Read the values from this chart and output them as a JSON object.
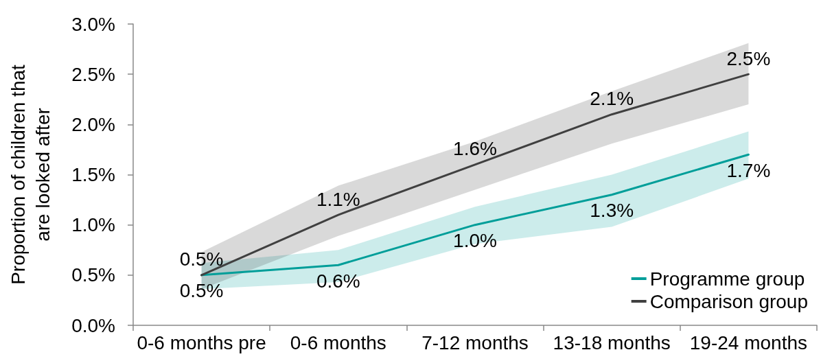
{
  "chart_data": {
    "type": "line",
    "ylabel": "Proportion of children that are looked after",
    "categories": [
      "0-6 months pre",
      "0-6 months",
      "7-12 months",
      "13-18 months",
      "19-24 months"
    ],
    "ylim": [
      0,
      3
    ],
    "yticks": [
      {
        "value": 0,
        "label": "0.0%"
      },
      {
        "value": 0.5,
        "label": "0.5%"
      },
      {
        "value": 1,
        "label": "1.0%"
      },
      {
        "value": 1.5,
        "label": "1.5%"
      },
      {
        "value": 2,
        "label": "2.0%"
      },
      {
        "value": 2.5,
        "label": "2.5%"
      },
      {
        "value": 3,
        "label": "3.0%"
      }
    ],
    "grid": false,
    "legend": "bottom right",
    "marker": "none",
    "line_style": "solid",
    "series": [
      {
        "name": "Programme group",
        "color": "#009e99",
        "values": [
          0.5,
          0.6,
          1.0,
          1.3,
          1.7
        ],
        "lower": [
          0.36,
          0.43,
          0.81,
          0.98,
          1.46
        ],
        "upper": [
          0.62,
          0.75,
          1.18,
          1.5,
          1.93
        ],
        "value_labels": [
          "0.5%",
          "0.6%",
          "1.0%",
          "1.3%",
          "1.7%"
        ]
      },
      {
        "name": "Comparison group",
        "color": "#404040",
        "values": [
          0.5,
          1.1,
          1.6,
          2.1,
          2.5
        ],
        "lower": [
          0.36,
          0.89,
          1.35,
          1.81,
          2.2
        ],
        "upper": [
          0.73,
          1.39,
          1.83,
          2.33,
          2.81
        ],
        "value_labels": [
          "0.5%",
          "1.1%",
          "1.6%",
          "2.1%",
          "2.5%"
        ]
      }
    ]
  }
}
